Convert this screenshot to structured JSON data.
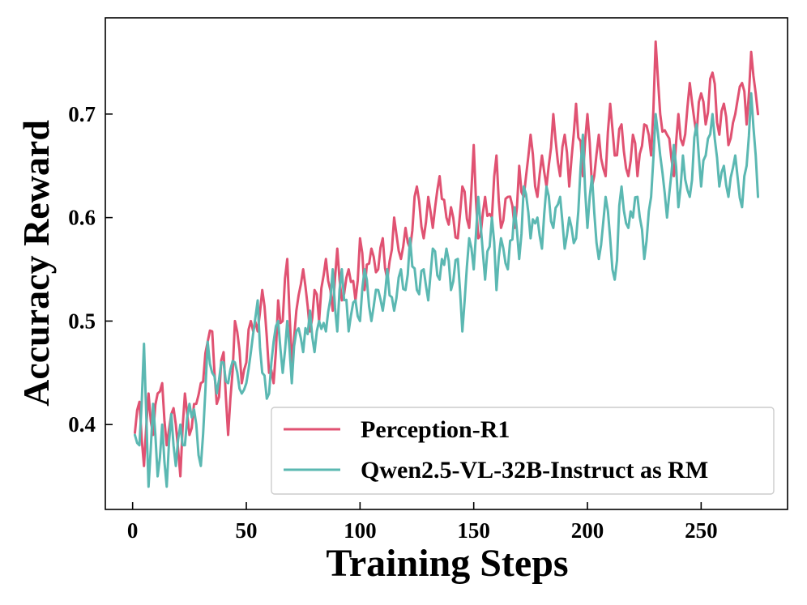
{
  "chart_data": {
    "type": "line",
    "title": "",
    "xlabel": "Training Steps",
    "ylabel": "Accuracy Reward",
    "xlim": [
      -12,
      288
    ],
    "ylim": [
      0.318,
      0.793
    ],
    "xticks": [
      0,
      50,
      100,
      150,
      200,
      250
    ],
    "yticks": [
      0.4,
      0.5,
      0.6,
      0.7
    ],
    "xtick_labels": [
      "0",
      "50",
      "100",
      "150",
      "200",
      "250"
    ],
    "ytick_labels": [
      "0.4",
      "0.5",
      "0.6",
      "0.7"
    ],
    "grid": false,
    "legend_position": "lower-right",
    "colors": {
      "perception": "#e05272",
      "qwen": "#5bb8b2"
    },
    "x_start": 1,
    "x_end": 275,
    "series": [
      {
        "name": "Perception-R1",
        "color": "#e05272",
        "anchors": [
          [
            1,
            0.392
          ],
          [
            3,
            0.422
          ],
          [
            5,
            0.36
          ],
          [
            7,
            0.43
          ],
          [
            9,
            0.39
          ],
          [
            11,
            0.43
          ],
          [
            13,
            0.44
          ],
          [
            15,
            0.38
          ],
          [
            17,
            0.41
          ],
          [
            19,
            0.4
          ],
          [
            21,
            0.35
          ],
          [
            23,
            0.43
          ],
          [
            25,
            0.39
          ],
          [
            28,
            0.42
          ],
          [
            30,
            0.44
          ],
          [
            33,
            0.48
          ],
          [
            35,
            0.49
          ],
          [
            37,
            0.42
          ],
          [
            40,
            0.47
          ],
          [
            42,
            0.39
          ],
          [
            45,
            0.5
          ],
          [
            48,
            0.44
          ],
          [
            50,
            0.46
          ],
          [
            52,
            0.5
          ],
          [
            55,
            0.49
          ],
          [
            57,
            0.53
          ],
          [
            60,
            0.45
          ],
          [
            62,
            0.44
          ],
          [
            64,
            0.52
          ],
          [
            66,
            0.5
          ],
          [
            68,
            0.56
          ],
          [
            70,
            0.46
          ],
          [
            72,
            0.51
          ],
          [
            75,
            0.55
          ],
          [
            78,
            0.49
          ],
          [
            80,
            0.53
          ],
          [
            82,
            0.5
          ],
          [
            85,
            0.56
          ],
          [
            88,
            0.51
          ],
          [
            90,
            0.57
          ],
          [
            92,
            0.52
          ],
          [
            95,
            0.55
          ],
          [
            98,
            0.52
          ],
          [
            100,
            0.58
          ],
          [
            102,
            0.53
          ],
          [
            105,
            0.57
          ],
          [
            108,
            0.55
          ],
          [
            110,
            0.58
          ],
          [
            112,
            0.54
          ],
          [
            115,
            0.6
          ],
          [
            118,
            0.56
          ],
          [
            120,
            0.59
          ],
          [
            122,
            0.57
          ],
          [
            125,
            0.63
          ],
          [
            128,
            0.58
          ],
          [
            130,
            0.62
          ],
          [
            132,
            0.59
          ],
          [
            135,
            0.64
          ],
          [
            138,
            0.6
          ],
          [
            140,
            0.61
          ],
          [
            143,
            0.58
          ],
          [
            145,
            0.63
          ],
          [
            148,
            0.59
          ],
          [
            150,
            0.67
          ],
          [
            152,
            0.58
          ],
          [
            155,
            0.62
          ],
          [
            158,
            0.6
          ],
          [
            160,
            0.66
          ],
          [
            162,
            0.59
          ],
          [
            165,
            0.62
          ],
          [
            168,
            0.59
          ],
          [
            170,
            0.65
          ],
          [
            172,
            0.62
          ],
          [
            175,
            0.68
          ],
          [
            178,
            0.62
          ],
          [
            180,
            0.66
          ],
          [
            182,
            0.63
          ],
          [
            185,
            0.7
          ],
          [
            188,
            0.64
          ],
          [
            190,
            0.68
          ],
          [
            192,
            0.63
          ],
          [
            195,
            0.71
          ],
          [
            198,
            0.64
          ],
          [
            200,
            0.7
          ],
          [
            202,
            0.63
          ],
          [
            205,
            0.68
          ],
          [
            208,
            0.64
          ],
          [
            210,
            0.71
          ],
          [
            212,
            0.66
          ],
          [
            215,
            0.69
          ],
          [
            218,
            0.64
          ],
          [
            220,
            0.68
          ],
          [
            222,
            0.64
          ],
          [
            225,
            0.69
          ],
          [
            228,
            0.66
          ],
          [
            230,
            0.77
          ],
          [
            232,
            0.7
          ],
          [
            235,
            0.68
          ],
          [
            238,
            0.64
          ],
          [
            240,
            0.7
          ],
          [
            242,
            0.67
          ],
          [
            245,
            0.73
          ],
          [
            248,
            0.68
          ],
          [
            250,
            0.72
          ],
          [
            252,
            0.69
          ],
          [
            255,
            0.74
          ],
          [
            258,
            0.68
          ],
          [
            260,
            0.71
          ],
          [
            262,
            0.67
          ],
          [
            265,
            0.7
          ],
          [
            268,
            0.73
          ],
          [
            270,
            0.69
          ],
          [
            272,
            0.76
          ],
          [
            274,
            0.72
          ],
          [
            275,
            0.7
          ]
        ]
      },
      {
        "name": "Qwen2.5-VL-32B-Instruct as RM",
        "color": "#5bb8b2",
        "anchors": [
          [
            1,
            0.39
          ],
          [
            3,
            0.38
          ],
          [
            5,
            0.478
          ],
          [
            7,
            0.34
          ],
          [
            9,
            0.42
          ],
          [
            11,
            0.35
          ],
          [
            13,
            0.4
          ],
          [
            15,
            0.34
          ],
          [
            17,
            0.41
          ],
          [
            19,
            0.36
          ],
          [
            21,
            0.4
          ],
          [
            23,
            0.38
          ],
          [
            25,
            0.42
          ],
          [
            28,
            0.4
          ],
          [
            30,
            0.36
          ],
          [
            33,
            0.48
          ],
          [
            35,
            0.45
          ],
          [
            37,
            0.43
          ],
          [
            40,
            0.46
          ],
          [
            42,
            0.44
          ],
          [
            45,
            0.46
          ],
          [
            48,
            0.43
          ],
          [
            50,
            0.44
          ],
          [
            52,
            0.47
          ],
          [
            55,
            0.52
          ],
          [
            57,
            0.45
          ],
          [
            60,
            0.43
          ],
          [
            62,
            0.48
          ],
          [
            64,
            0.5
          ],
          [
            66,
            0.45
          ],
          [
            68,
            0.5
          ],
          [
            70,
            0.44
          ],
          [
            72,
            0.49
          ],
          [
            75,
            0.47
          ],
          [
            78,
            0.51
          ],
          [
            80,
            0.47
          ],
          [
            82,
            0.5
          ],
          [
            85,
            0.49
          ],
          [
            88,
            0.55
          ],
          [
            90,
            0.49
          ],
          [
            92,
            0.55
          ],
          [
            95,
            0.49
          ],
          [
            98,
            0.52
          ],
          [
            100,
            0.5
          ],
          [
            102,
            0.55
          ],
          [
            105,
            0.5
          ],
          [
            108,
            0.53
          ],
          [
            110,
            0.51
          ],
          [
            112,
            0.55
          ],
          [
            115,
            0.51
          ],
          [
            118,
            0.55
          ],
          [
            120,
            0.53
          ],
          [
            122,
            0.58
          ],
          [
            125,
            0.53
          ],
          [
            128,
            0.55
          ],
          [
            130,
            0.52
          ],
          [
            132,
            0.57
          ],
          [
            135,
            0.54
          ],
          [
            138,
            0.57
          ],
          [
            140,
            0.53
          ],
          [
            143,
            0.56
          ],
          [
            145,
            0.49
          ],
          [
            148,
            0.58
          ],
          [
            150,
            0.55
          ],
          [
            152,
            0.62
          ],
          [
            155,
            0.54
          ],
          [
            158,
            0.6
          ],
          [
            160,
            0.53
          ],
          [
            162,
            0.58
          ],
          [
            165,
            0.55
          ],
          [
            168,
            0.61
          ],
          [
            170,
            0.56
          ],
          [
            172,
            0.63
          ],
          [
            175,
            0.58
          ],
          [
            178,
            0.6
          ],
          [
            180,
            0.57
          ],
          [
            182,
            0.63
          ],
          [
            185,
            0.59
          ],
          [
            188,
            0.62
          ],
          [
            190,
            0.57
          ],
          [
            192,
            0.6
          ],
          [
            195,
            0.58
          ],
          [
            198,
            0.68
          ],
          [
            200,
            0.59
          ],
          [
            202,
            0.64
          ],
          [
            205,
            0.56
          ],
          [
            208,
            0.62
          ],
          [
            210,
            0.58
          ],
          [
            212,
            0.54
          ],
          [
            215,
            0.63
          ],
          [
            218,
            0.59
          ],
          [
            220,
            0.6
          ],
          [
            222,
            0.62
          ],
          [
            225,
            0.56
          ],
          [
            228,
            0.62
          ],
          [
            230,
            0.7
          ],
          [
            232,
            0.66
          ],
          [
            235,
            0.6
          ],
          [
            238,
            0.67
          ],
          [
            240,
            0.61
          ],
          [
            242,
            0.66
          ],
          [
            245,
            0.62
          ],
          [
            248,
            0.69
          ],
          [
            250,
            0.63
          ],
          [
            252,
            0.66
          ],
          [
            255,
            0.7
          ],
          [
            258,
            0.63
          ],
          [
            260,
            0.65
          ],
          [
            262,
            0.62
          ],
          [
            265,
            0.66
          ],
          [
            268,
            0.61
          ],
          [
            270,
            0.65
          ],
          [
            272,
            0.72
          ],
          [
            274,
            0.66
          ],
          [
            275,
            0.62
          ]
        ]
      }
    ]
  }
}
